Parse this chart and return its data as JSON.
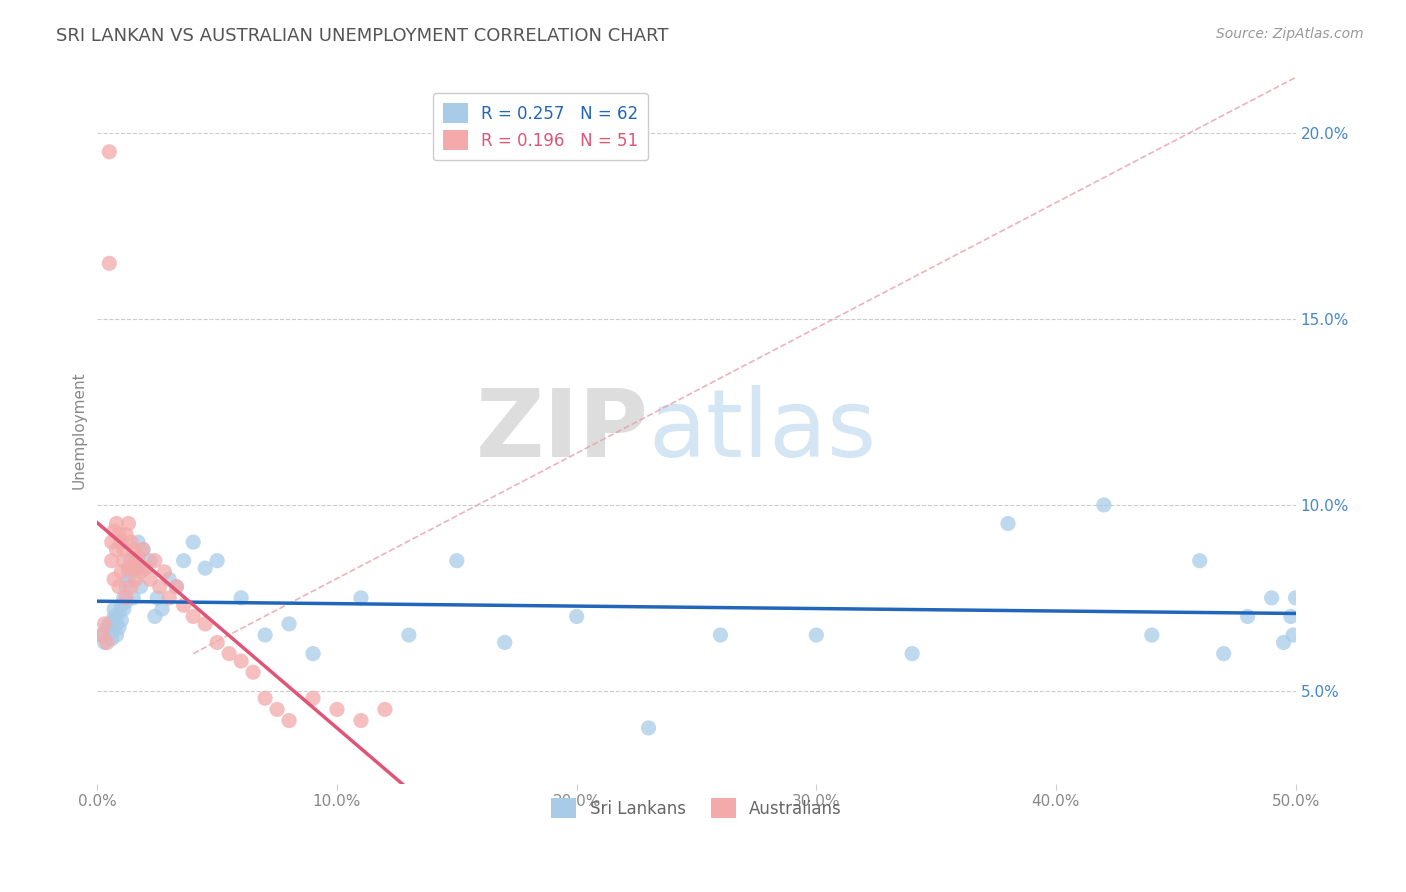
{
  "title": "SRI LANKAN VS AUSTRALIAN UNEMPLOYMENT CORRELATION CHART",
  "source": "Source: ZipAtlas.com",
  "ylabel": "Unemployment",
  "watermark_zip": "ZIP",
  "watermark_atlas": "atlas",
  "legend_blue_r": "0.257",
  "legend_blue_n": "62",
  "legend_pink_r": "0.196",
  "legend_pink_n": "51",
  "x_min": 0.0,
  "x_max": 0.5,
  "y_min": 0.025,
  "y_max": 0.215,
  "yticks": [
    0.05,
    0.1,
    0.15,
    0.2
  ],
  "ytick_labels": [
    "5.0%",
    "10.0%",
    "15.0%",
    "20.0%"
  ],
  "xticks": [
    0.0,
    0.1,
    0.2,
    0.3,
    0.4,
    0.5
  ],
  "xtick_labels": [
    "0.0%",
    "10.0%",
    "20.0%",
    "30.0%",
    "40.0%",
    "50.0%"
  ],
  "color_blue": "#a8cce8",
  "color_pink": "#f4aaaa",
  "color_blue_line": "#2266bb",
  "color_pink_line": "#e05575",
  "color_dashed": "#e8a0a8",
  "color_grid": "#cccccc",
  "color_ytick": "#4488cc",
  "background_color": "#ffffff",
  "sri_lankans_x": [
    0.002,
    0.003,
    0.004,
    0.005,
    0.006,
    0.006,
    0.007,
    0.007,
    0.007,
    0.008,
    0.008,
    0.009,
    0.009,
    0.01,
    0.01,
    0.011,
    0.011,
    0.012,
    0.012,
    0.013,
    0.013,
    0.014,
    0.015,
    0.016,
    0.017,
    0.018,
    0.019,
    0.02,
    0.022,
    0.024,
    0.025,
    0.027,
    0.03,
    0.033,
    0.036,
    0.04,
    0.045,
    0.05,
    0.06,
    0.07,
    0.08,
    0.09,
    0.11,
    0.13,
    0.15,
    0.17,
    0.2,
    0.23,
    0.26,
    0.3,
    0.34,
    0.38,
    0.42,
    0.44,
    0.46,
    0.47,
    0.48,
    0.49,
    0.495,
    0.498,
    0.499,
    0.5
  ],
  "sri_lankans_y": [
    0.065,
    0.063,
    0.067,
    0.068,
    0.064,
    0.066,
    0.07,
    0.069,
    0.072,
    0.065,
    0.068,
    0.071,
    0.067,
    0.073,
    0.069,
    0.075,
    0.072,
    0.078,
    0.074,
    0.08,
    0.082,
    0.085,
    0.075,
    0.083,
    0.09,
    0.078,
    0.088,
    0.083,
    0.085,
    0.07,
    0.075,
    0.072,
    0.08,
    0.078,
    0.085,
    0.09,
    0.083,
    0.085,
    0.075,
    0.065,
    0.068,
    0.06,
    0.075,
    0.065,
    0.085,
    0.063,
    0.07,
    0.04,
    0.065,
    0.065,
    0.06,
    0.095,
    0.1,
    0.065,
    0.085,
    0.06,
    0.07,
    0.075,
    0.063,
    0.07,
    0.065,
    0.075
  ],
  "australians_x": [
    0.002,
    0.003,
    0.004,
    0.005,
    0.005,
    0.006,
    0.006,
    0.007,
    0.007,
    0.008,
    0.008,
    0.009,
    0.009,
    0.01,
    0.01,
    0.011,
    0.011,
    0.012,
    0.012,
    0.013,
    0.013,
    0.014,
    0.014,
    0.015,
    0.015,
    0.016,
    0.016,
    0.017,
    0.018,
    0.019,
    0.02,
    0.022,
    0.024,
    0.026,
    0.028,
    0.03,
    0.033,
    0.036,
    0.04,
    0.045,
    0.05,
    0.055,
    0.06,
    0.065,
    0.07,
    0.075,
    0.08,
    0.09,
    0.1,
    0.11,
    0.12
  ],
  "australians_y": [
    0.065,
    0.068,
    0.063,
    0.195,
    0.165,
    0.09,
    0.085,
    0.093,
    0.08,
    0.095,
    0.088,
    0.092,
    0.078,
    0.09,
    0.082,
    0.085,
    0.088,
    0.092,
    0.075,
    0.095,
    0.083,
    0.09,
    0.078,
    0.088,
    0.083,
    0.085,
    0.08,
    0.086,
    0.082,
    0.088,
    0.083,
    0.08,
    0.085,
    0.078,
    0.082,
    0.075,
    0.078,
    0.073,
    0.07,
    0.068,
    0.063,
    0.06,
    0.058,
    0.055,
    0.048,
    0.045,
    0.042,
    0.048,
    0.045,
    0.042,
    0.045
  ],
  "ref_line_x_start": 0.04,
  "ref_line_x_end": 0.5,
  "ref_line_y_start": 0.06,
  "ref_line_y_end": 0.215
}
